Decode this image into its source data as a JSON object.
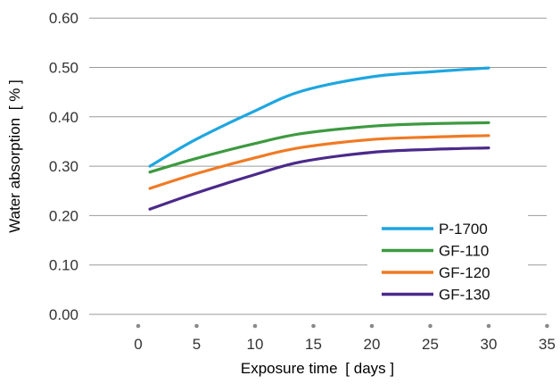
{
  "chart_data": {
    "type": "line",
    "xlabel": "Exposure time",
    "xlabel_unit": "[ days ]",
    "ylabel": "Water absorption",
    "ylabel_unit": "[ % ]",
    "xlim": [
      0,
      35
    ],
    "ylim": [
      0.0,
      0.6
    ],
    "x_ticks": [
      "0",
      "5",
      "10",
      "15",
      "20",
      "25",
      "30",
      "35"
    ],
    "y_ticks": [
      "0.00",
      "0.10",
      "0.20",
      "0.30",
      "0.40",
      "0.50",
      "0.60"
    ],
    "grid": "horizontal",
    "legend_position": "bottom-right",
    "x": [
      1,
      5,
      10,
      14,
      20,
      25,
      30
    ],
    "series": [
      {
        "name": "P-1700",
        "color": "#1ea6e0",
        "values": [
          0.3,
          0.355,
          0.412,
          0.452,
          0.481,
          0.491,
          0.499
        ]
      },
      {
        "name": "GF-110",
        "color": "#3d9a40",
        "values": [
          0.288,
          0.316,
          0.346,
          0.366,
          0.381,
          0.386,
          0.388
        ]
      },
      {
        "name": "GF-120",
        "color": "#f07a23",
        "values": [
          0.255,
          0.285,
          0.317,
          0.338,
          0.354,
          0.359,
          0.362
        ]
      },
      {
        "name": "GF-130",
        "color": "#4b2a8a",
        "values": [
          0.213,
          0.246,
          0.283,
          0.309,
          0.328,
          0.334,
          0.337
        ]
      }
    ]
  }
}
